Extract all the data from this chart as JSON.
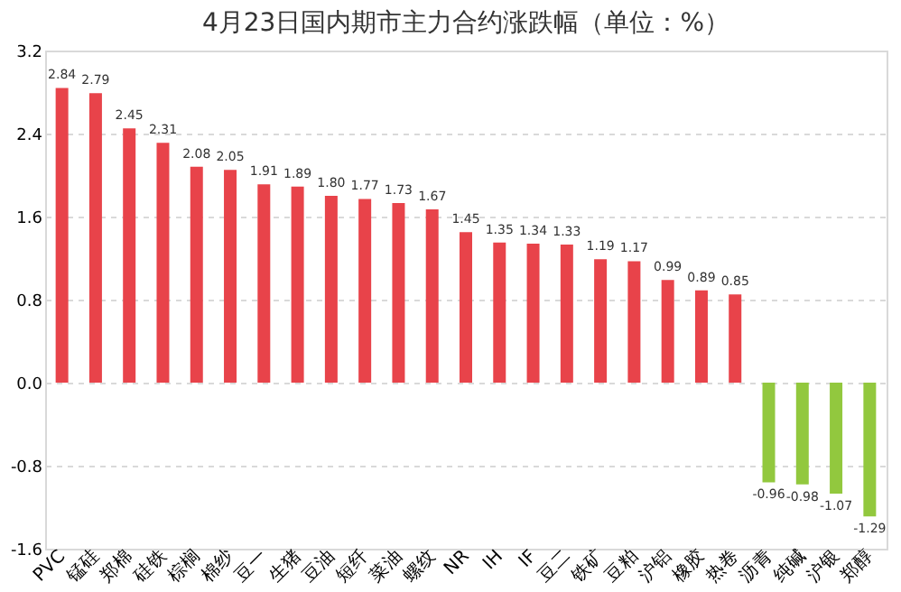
{
  "chart_data": {
    "type": "bar",
    "title": "4月23日国内期市主力合约涨跌幅（单位：%）",
    "categories": [
      "PVC",
      "锰硅",
      "郑棉",
      "硅铁",
      "棕榈",
      "棉纱",
      "豆一",
      "生猪",
      "豆油",
      "短纤",
      "菜油",
      "螺纹",
      "NR",
      "IH",
      "IF",
      "豆二",
      "铁矿",
      "豆粕",
      "沪铝",
      "橡胶",
      "热卷",
      "沥青",
      "纯碱",
      "沪银",
      "郑醇"
    ],
    "values": [
      2.84,
      2.79,
      2.45,
      2.31,
      2.08,
      2.05,
      1.91,
      1.89,
      1.8,
      1.77,
      1.73,
      1.67,
      1.45,
      1.35,
      1.34,
      1.33,
      1.19,
      1.17,
      0.99,
      0.89,
      0.85,
      -0.96,
      -0.98,
      -1.07,
      -1.29
    ],
    "value_labels": [
      "2.84",
      "2.79",
      "2.45",
      "2.31",
      "2.08",
      "2.05",
      "1.91",
      "1.89",
      "1.80",
      "1.77",
      "1.73",
      "1.67",
      "1.45",
      "1.35",
      "1.34",
      "1.33",
      "1.19",
      "1.17",
      "0.99",
      "0.89",
      "0.85",
      "-0.96",
      "-0.98",
      "-1.07",
      "-1.29"
    ],
    "colors": [
      "#e8434a",
      "#e8434a",
      "#e8434a",
      "#e8434a",
      "#e8434a",
      "#e8434a",
      "#e8434a",
      "#e8434a",
      "#e8434a",
      "#e8434a",
      "#e8434a",
      "#e8434a",
      "#e8434a",
      "#e8434a",
      "#e8434a",
      "#e8434a",
      "#e8434a",
      "#e8434a",
      "#e8434a",
      "#e8434a",
      "#e8434a",
      "#92c83e",
      "#92c83e",
      "#92c83e",
      "#92c83e"
    ],
    "ylim": [
      -1.6,
      3.2
    ],
    "yticks": [
      {
        "value": -1.6,
        "label": "-1.6"
      },
      {
        "value": -0.8,
        "label": "-0.8"
      },
      {
        "value": 0,
        "label": "0.0"
      },
      {
        "value": 0.8,
        "label": "0.8"
      },
      {
        "value": 1.6,
        "label": "1.6"
      },
      {
        "value": 2.4,
        "label": "2.4"
      },
      {
        "value": 3.2,
        "label": "3.2"
      }
    ],
    "grid": "y"
  }
}
